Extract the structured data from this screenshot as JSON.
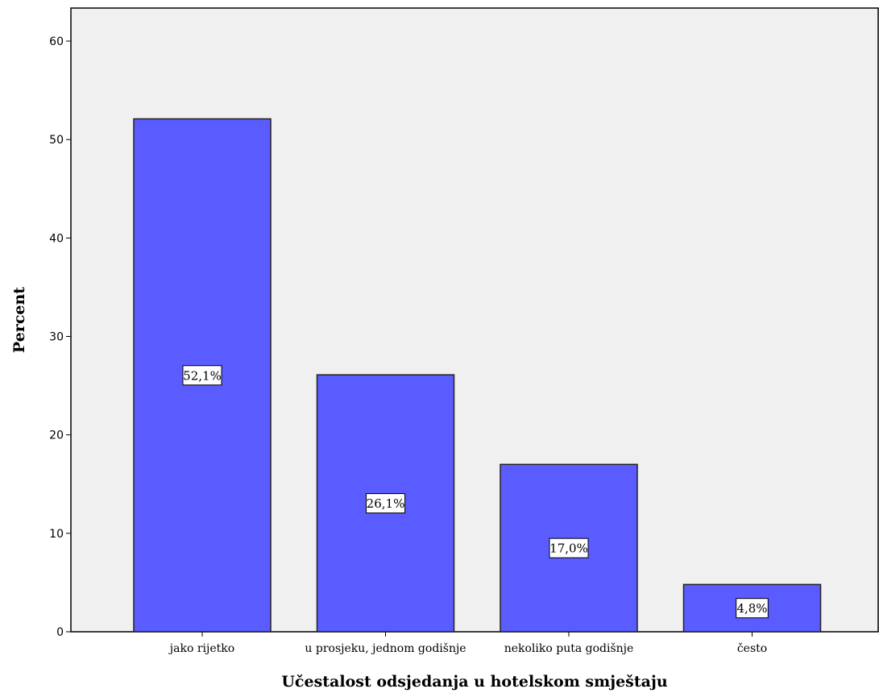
{
  "chart_data": {
    "type": "bar",
    "title": "",
    "xlabel": "Učestalost odsjedanja u hotelskom smještaju",
    "ylabel": "Percent",
    "categories": [
      "jako rijetko",
      "u prosjeku, jednom godišnje",
      "nekoliko puta godišnje",
      "često"
    ],
    "values": [
      52.1,
      26.1,
      17.0,
      4.8
    ],
    "data_labels": [
      "52,1%",
      "26,1%",
      "17,0%",
      "4,8%"
    ],
    "ylim": [
      0,
      60
    ],
    "yticks": [
      0,
      10,
      20,
      30,
      40,
      50,
      60
    ],
    "grid": false,
    "legend": "none",
    "colors": {
      "bar_fill": "#5a5cff",
      "bar_stroke": "#222222",
      "plot_background": "#f0f0f0",
      "label_box": "#ffffff"
    }
  }
}
